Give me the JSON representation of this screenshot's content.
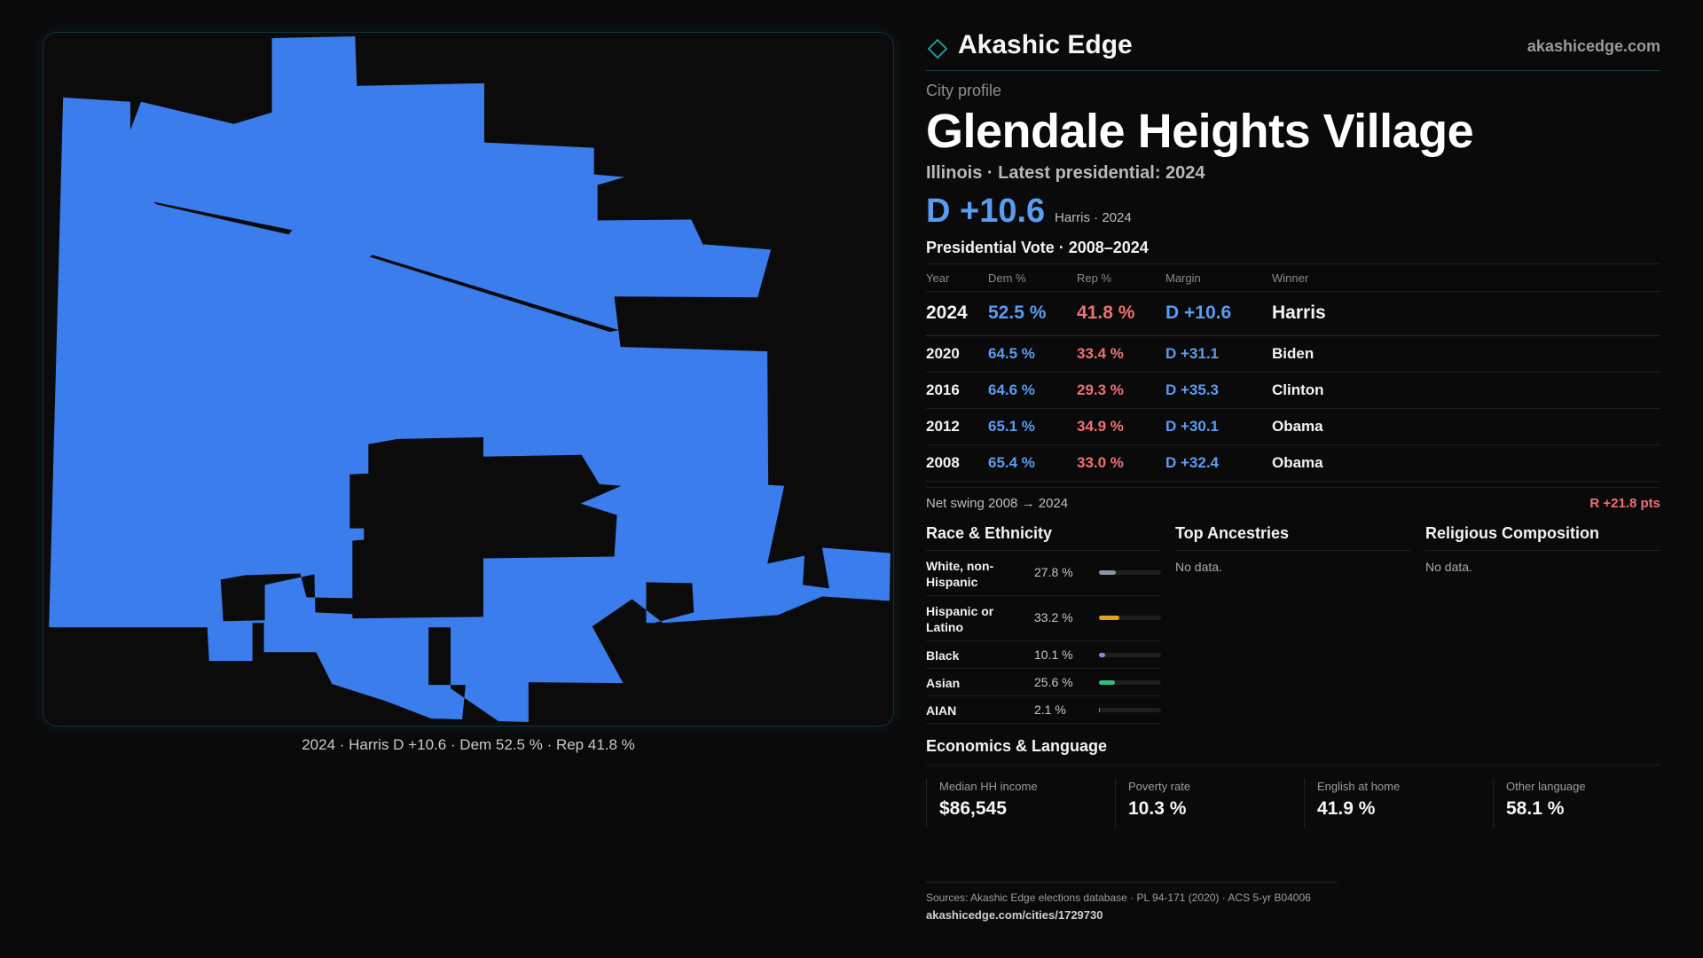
{
  "brand": {
    "name": "Akashic Edge",
    "url": "akashicedge.com",
    "logo_icon": "diamond-outline-icon",
    "accent": "#1fa3a8"
  },
  "profile": {
    "kicker": "City profile",
    "city": "Glendale Heights Village",
    "subtitle": "Illinois · Latest presidential: 2024",
    "margin": "D +10.6",
    "margin_note": "Harris · 2024"
  },
  "map": {
    "caption": "2024 · Harris D +10.6 · Dem 52.5 % · Rep 41.8 %",
    "fill_color": "#3b7ded"
  },
  "votes": {
    "title": "Presidential Vote · 2008–2024",
    "headers": [
      "Year",
      "Dem %",
      "Rep %",
      "Margin",
      "Winner"
    ],
    "rows": [
      {
        "year": "2024",
        "dem": "52.5 %",
        "rep": "41.8 %",
        "margin": "D +10.6",
        "winner": "Harris"
      },
      {
        "year": "2020",
        "dem": "64.5 %",
        "rep": "33.4 %",
        "margin": "D +31.1",
        "winner": "Biden"
      },
      {
        "year": "2016",
        "dem": "64.6 %",
        "rep": "29.3 %",
        "margin": "D +35.3",
        "winner": "Clinton"
      },
      {
        "year": "2012",
        "dem": "65.1 %",
        "rep": "34.9 %",
        "margin": "D +30.1",
        "winner": "Obama"
      },
      {
        "year": "2008",
        "dem": "65.4 %",
        "rep": "33.0 %",
        "margin": "D +32.4",
        "winner": "Obama"
      }
    ],
    "swing_label": "Net swing 2008 → 2024",
    "swing_value": "R +21.8 pts",
    "colors": {
      "dem": "#5b9cf2",
      "rep": "#f07070"
    }
  },
  "race": {
    "title": "Race & Ethnicity",
    "rows": [
      {
        "label": "White, non-Hispanic",
        "pct": "27.8 %",
        "value": 27.8,
        "color": "#8a96a8"
      },
      {
        "label": "Hispanic or Latino",
        "pct": "33.2 %",
        "value": 33.2,
        "color": "#e0a020"
      },
      {
        "label": "Black",
        "pct": "10.1 %",
        "value": 10.1,
        "color": "#9b7ff0"
      },
      {
        "label": "Asian",
        "pct": "25.6 %",
        "value": 25.6,
        "color": "#2fbf7a"
      },
      {
        "label": "AIAN",
        "pct": "2.1 %",
        "value": 2.1,
        "color": "#e07a30"
      }
    ]
  },
  "ancestries": {
    "title": "Top Ancestries",
    "empty": "No data."
  },
  "religion": {
    "title": "Religious Composition",
    "empty": "No data."
  },
  "economics": {
    "title": "Economics & Language",
    "cells": [
      {
        "label": "Median HH income",
        "value": "$86,545"
      },
      {
        "label": "Poverty rate",
        "value": "10.3 %"
      },
      {
        "label": "English at home",
        "value": "41.9 %"
      },
      {
        "label": "Other language",
        "value": "58.1 %"
      }
    ]
  },
  "sources": {
    "text": "Sources: Akashic Edge elections database · PL 94-171 (2020) · ACS 5-yr B04006",
    "url": "akashicedge.com/cities/1729730"
  }
}
